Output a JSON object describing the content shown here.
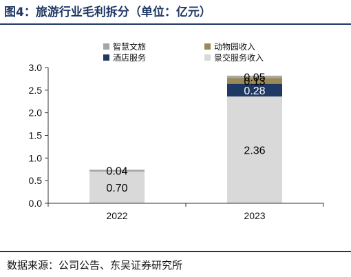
{
  "title": "图4：旅游行业毛利拆分（单位：亿元）",
  "source": "数据来源：公司公告、东吴证券研究所",
  "colors": {
    "brand": "#1f3864",
    "axis": "#333333"
  },
  "chart_data": {
    "type": "bar",
    "stacked": true,
    "categories": [
      "2022",
      "2023"
    ],
    "ylim": [
      0,
      3.0
    ],
    "yticks": [
      "0.0",
      "0.5",
      "1.0",
      "1.5",
      "2.0",
      "2.5",
      "3.0"
    ],
    "legend_position": "top",
    "series": [
      {
        "name": "景交服务收入",
        "color": "#d9d9d9",
        "text_color": "#000000",
        "values": [
          0.7,
          2.36
        ],
        "labels": [
          "0.70",
          "2.36"
        ]
      },
      {
        "name": "酒店服务",
        "color": "#1f3864",
        "text_color": "#ffffff",
        "values": [
          0.0,
          0.28
        ],
        "labels": [
          "",
          "0.28"
        ]
      },
      {
        "name": "动物园收入",
        "color": "#9b8a55",
        "text_color": "#000000",
        "values": [
          0.0,
          0.13
        ],
        "labels": [
          "",
          "0.13"
        ]
      },
      {
        "name": "智慧文旅",
        "color": "#a6a6a6",
        "text_color": "#000000",
        "values": [
          0.04,
          0.05
        ],
        "labels": [
          "0.04",
          "0.05"
        ]
      }
    ],
    "legend_order": [
      "智慧文旅",
      "动物园收入",
      "酒店服务",
      "景交服务收入"
    ]
  }
}
